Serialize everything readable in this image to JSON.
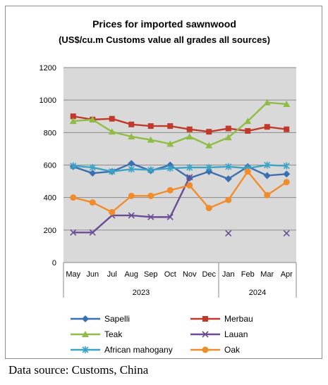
{
  "chart_data": {
    "type": "line",
    "title": "Prices for imported sawnwood",
    "subtitle": "(US$/cu.m Customs value all grades all sources)",
    "categories": [
      "May",
      "Jun",
      "Jul",
      "Aug",
      "Sep",
      "Oct",
      "Nov",
      "Dec",
      "Jan",
      "Feb",
      "Mar",
      "Apr"
    ],
    "year_groups": [
      {
        "label": "2023",
        "span": [
          0,
          7
        ]
      },
      {
        "label": "2024",
        "span": [
          8,
          11
        ]
      }
    ],
    "ylim": [
      0,
      1200
    ],
    "yticks": [
      0,
      200,
      400,
      600,
      800,
      1000,
      1200
    ],
    "ytick_labels": [
      "0",
      "200",
      "400",
      "600",
      "800",
      "1000",
      "1200"
    ],
    "grid": true,
    "legend_position": "bottom",
    "series": [
      {
        "name": "Sapelli",
        "color": "#3a6fb0",
        "marker": "diamond",
        "values": [
          590,
          550,
          560,
          610,
          565,
          600,
          520,
          560,
          515,
          590,
          535,
          545
        ]
      },
      {
        "name": "Merbau",
        "color": "#c0392b",
        "marker": "square",
        "values": [
          900,
          880,
          885,
          850,
          840,
          840,
          820,
          805,
          825,
          810,
          835,
          820
        ]
      },
      {
        "name": "Teak",
        "color": "#8fbc45",
        "marker": "triangle",
        "values": [
          870,
          880,
          805,
          775,
          755,
          730,
          775,
          720,
          770,
          870,
          985,
          975
        ]
      },
      {
        "name": "Lauan",
        "color": "#6a4c93",
        "marker": "x",
        "values": [
          185,
          185,
          290,
          290,
          280,
          280,
          525,
          null,
          180,
          null,
          null,
          180
        ]
      },
      {
        "name": "African mahogany",
        "color": "#3aa3c6",
        "marker": "star",
        "values": [
          595,
          585,
          560,
          575,
          570,
          580,
          585,
          585,
          590,
          580,
          600,
          595
        ]
      },
      {
        "name": "Oak",
        "color": "#f08c2a",
        "marker": "circle",
        "values": [
          400,
          370,
          310,
          410,
          410,
          445,
          475,
          335,
          385,
          560,
          415,
          495
        ]
      }
    ]
  },
  "source_note": "Data source: Customs, China"
}
